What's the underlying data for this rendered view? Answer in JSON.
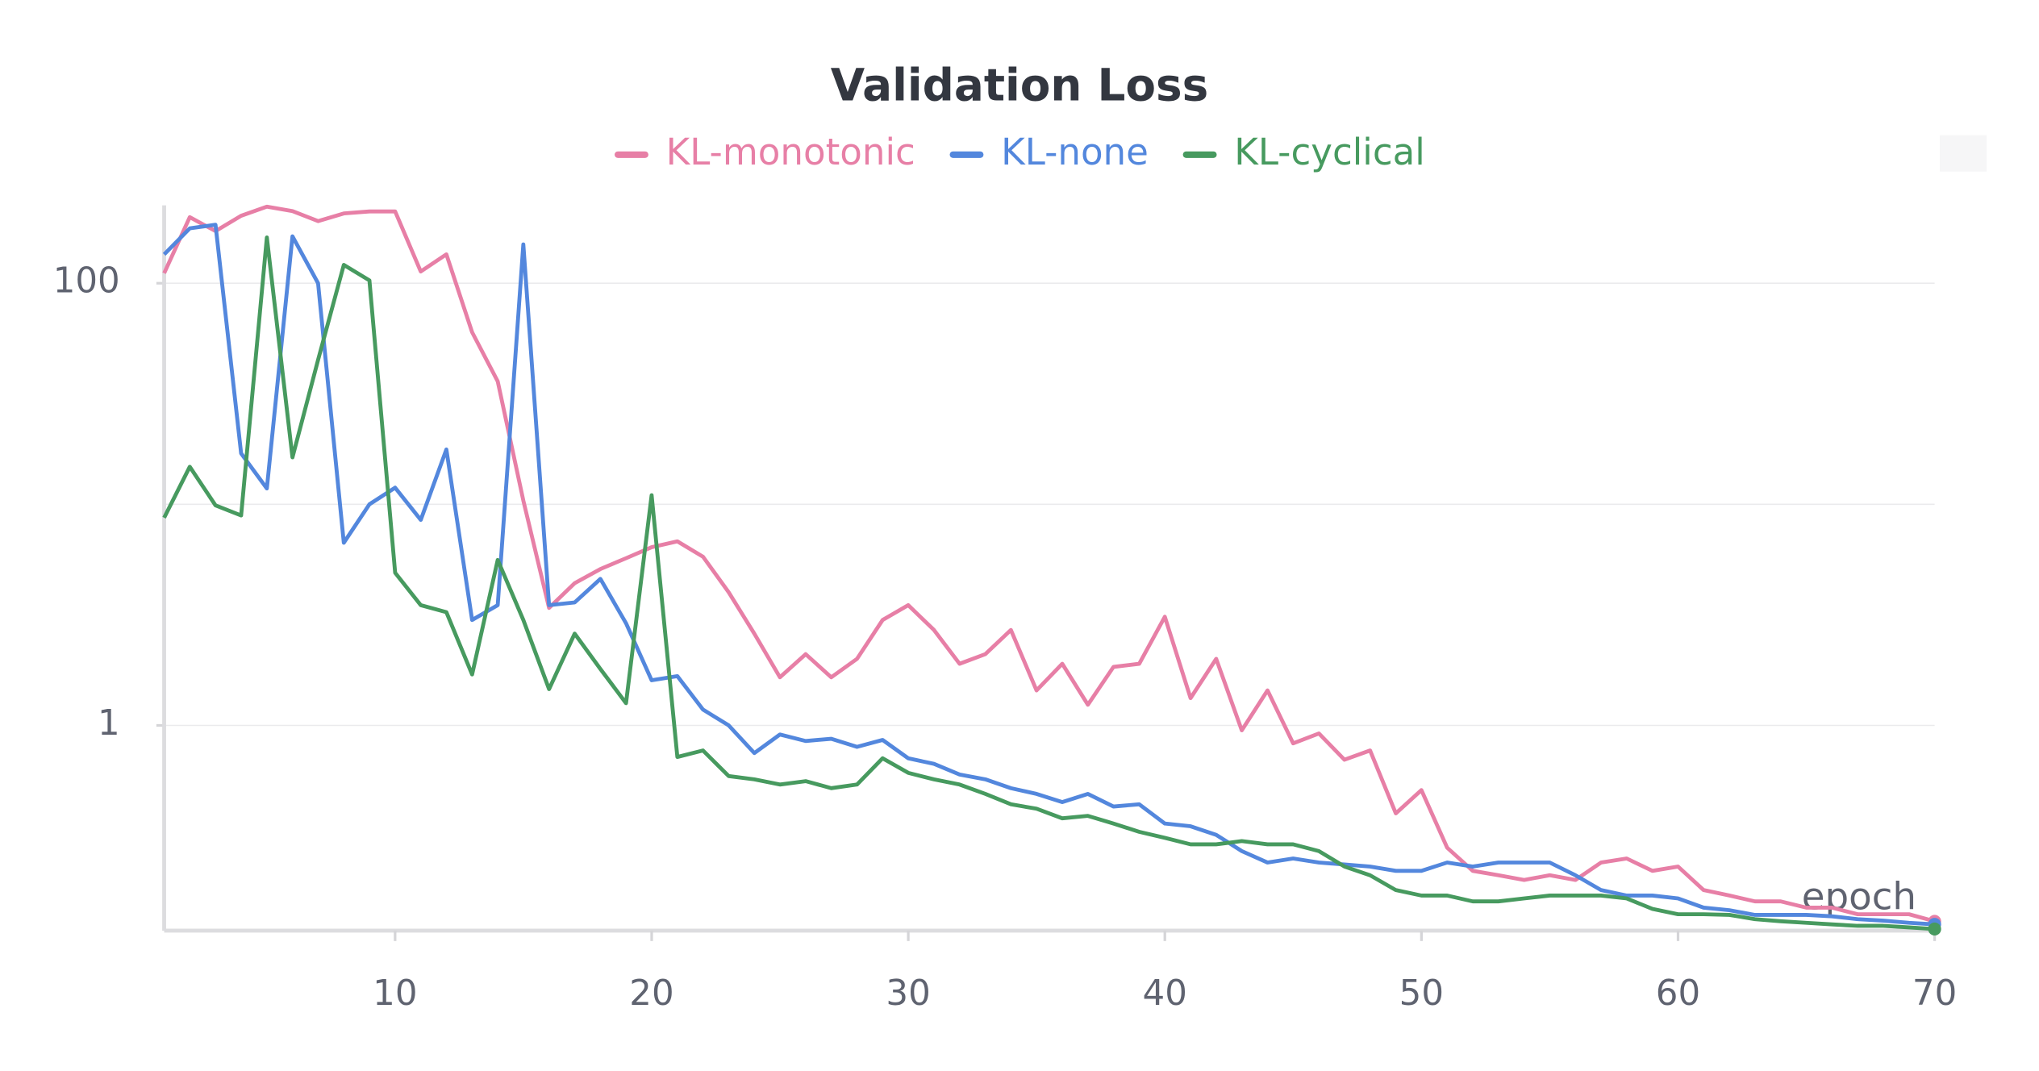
{
  "chart_data": {
    "type": "line",
    "title": "Validation Loss",
    "x_label": "epoch",
    "log_y": true,
    "grid": true,
    "legend_position": "top",
    "x": [
      1,
      2,
      3,
      4,
      5,
      6,
      7,
      8,
      9,
      10,
      11,
      12,
      13,
      14,
      15,
      16,
      17,
      18,
      19,
      20,
      21,
      22,
      23,
      24,
      25,
      26,
      27,
      28,
      29,
      30,
      31,
      32,
      33,
      34,
      35,
      36,
      37,
      38,
      39,
      40,
      41,
      42,
      43,
      44,
      45,
      46,
      47,
      48,
      49,
      50,
      51,
      52,
      53,
      54,
      55,
      56,
      57,
      58,
      59,
      60,
      61,
      62,
      63,
      64,
      65,
      66,
      67,
      68,
      69,
      70
    ],
    "xlim": [
      1,
      70
    ],
    "xticks": [
      10,
      20,
      30,
      40,
      50,
      60,
      70
    ],
    "ylim": [
      0.118,
      225
    ],
    "yticks": [
      1,
      100
    ],
    "y_minor_gridlines": [
      10
    ],
    "series": [
      {
        "name": "KL-monotonic",
        "color": "#e77fa6",
        "values": [
          111,
          199,
          172,
          202,
          222,
          212,
          191,
          207,
          211,
          211,
          113,
          135,
          60,
          36,
          10.4,
          3.4,
          4.4,
          5.1,
          5.7,
          6.4,
          6.8,
          5.8,
          4.0,
          2.6,
          1.65,
          2.1,
          1.65,
          2.0,
          3.0,
          3.5,
          2.7,
          1.9,
          2.1,
          2.7,
          1.44,
          1.9,
          1.24,
          1.84,
          1.9,
          3.1,
          1.33,
          2.0,
          0.95,
          1.44,
          0.83,
          0.92,
          0.7,
          0.77,
          0.4,
          0.51,
          0.28,
          0.22,
          0.21,
          0.2,
          0.21,
          0.2,
          0.24,
          0.25,
          0.22,
          0.23,
          0.18,
          0.17,
          0.16,
          0.16,
          0.15,
          0.15,
          0.14,
          0.14,
          0.14,
          0.13
        ]
      },
      {
        "name": "KL-none",
        "color": "#5387dd",
        "values": [
          135,
          177,
          184,
          17,
          11.8,
          163,
          100,
          6.7,
          10,
          11.9,
          8.5,
          17.7,
          3.0,
          3.5,
          150,
          3.5,
          3.6,
          4.6,
          2.9,
          1.6,
          1.67,
          1.18,
          1.0,
          0.75,
          0.91,
          0.85,
          0.87,
          0.8,
          0.86,
          0.71,
          0.67,
          0.6,
          0.57,
          0.52,
          0.49,
          0.45,
          0.49,
          0.43,
          0.44,
          0.36,
          0.35,
          0.32,
          0.27,
          0.24,
          0.25,
          0.24,
          0.235,
          0.23,
          0.22,
          0.22,
          0.24,
          0.23,
          0.24,
          0.24,
          0.24,
          0.21,
          0.18,
          0.17,
          0.17,
          0.165,
          0.15,
          0.146,
          0.139,
          0.139,
          0.139,
          0.137,
          0.133,
          0.131,
          0.128,
          0.126
        ]
      },
      {
        "name": "KL-cyclical",
        "color": "#479a5f",
        "values": [
          8.7,
          14.8,
          9.9,
          8.9,
          161,
          16.3,
          45,
          121,
          103,
          4.9,
          3.5,
          3.25,
          1.7,
          5.6,
          3.0,
          1.46,
          2.6,
          1.8,
          1.26,
          11,
          0.72,
          0.77,
          0.59,
          0.57,
          0.54,
          0.56,
          0.52,
          0.54,
          0.71,
          0.61,
          0.57,
          0.54,
          0.49,
          0.44,
          0.42,
          0.38,
          0.39,
          0.36,
          0.33,
          0.31,
          0.29,
          0.29,
          0.3,
          0.29,
          0.29,
          0.27,
          0.23,
          0.21,
          0.18,
          0.17,
          0.17,
          0.16,
          0.16,
          0.165,
          0.17,
          0.17,
          0.17,
          0.165,
          0.148,
          0.14,
          0.14,
          0.139,
          0.133,
          0.13,
          0.128,
          0.126,
          0.124,
          0.124,
          0.122,
          0.12
        ]
      }
    ]
  }
}
